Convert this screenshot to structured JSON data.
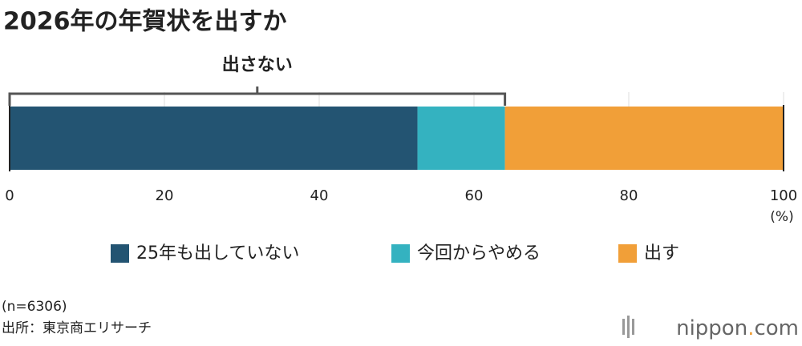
{
  "chart_data": {
    "type": "bar",
    "orientation": "horizontal",
    "stacked": true,
    "title": "2026年の年賀状を出すか",
    "categories": [
      null
    ],
    "series": [
      {
        "name": "25年も出していない",
        "color": "#235472",
        "values": [
          52.7
        ]
      },
      {
        "name": "今回からやめる",
        "color": "#34b2c0",
        "values": [
          11.3
        ]
      },
      {
        "name": "出す",
        "color": "#f19f38",
        "values": [
          36.0
        ]
      }
    ],
    "bracket_label": "出さない",
    "xlim": [
      0,
      100
    ],
    "xticks": [
      0,
      20,
      40,
      60,
      80,
      100
    ],
    "x_unit": "(%)",
    "grid": true,
    "note": "(n=6306)",
    "source": "出所：東京商エリサーチ",
    "logo": [
      "nippon",
      ".",
      "com"
    ]
  }
}
